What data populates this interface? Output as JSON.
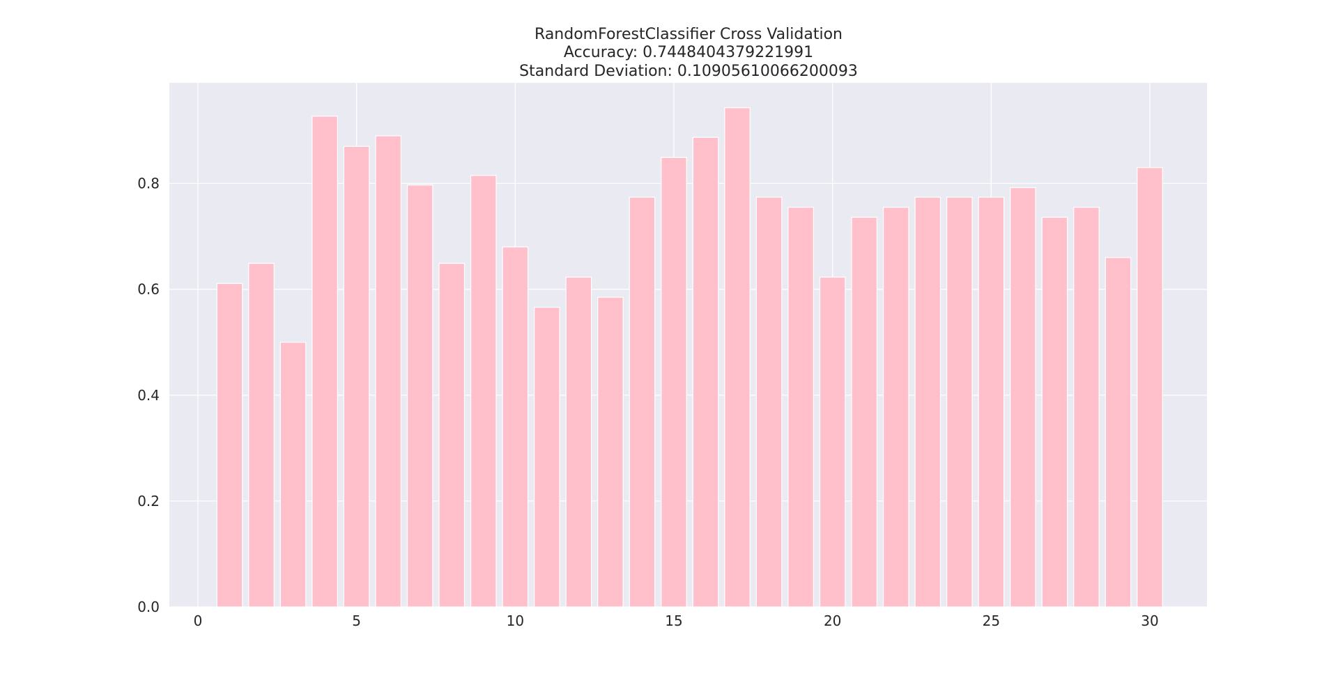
{
  "chart_data": {
    "type": "bar",
    "title": [
      "RandomForestClassifier Cross Validation",
      "Accuracy: 0.7448404379221991",
      "Standard Deviation: 0.10905610066200093"
    ],
    "xlabel": "",
    "ylabel": "",
    "x": [
      1,
      2,
      3,
      4,
      5,
      6,
      7,
      8,
      9,
      10,
      11,
      12,
      13,
      14,
      15,
      16,
      17,
      18,
      19,
      20,
      21,
      22,
      23,
      24,
      25,
      26,
      27,
      28,
      29,
      30
    ],
    "values": [
      0.611,
      0.649,
      0.5,
      0.927,
      0.87,
      0.89,
      0.797,
      0.649,
      0.815,
      0.68,
      0.566,
      0.623,
      0.585,
      0.774,
      0.849,
      0.887,
      0.943,
      0.774,
      0.755,
      0.623,
      0.736,
      0.755,
      0.774,
      0.774,
      0.774,
      0.792,
      0.736,
      0.755,
      0.66,
      0.83
    ],
    "xlim": [
      -0.9,
      31.8
    ],
    "ylim": [
      0,
      0.99
    ],
    "xticks": [
      0,
      5,
      10,
      15,
      20,
      25,
      30
    ],
    "yticks": [
      0.0,
      0.2,
      0.4,
      0.6,
      0.8
    ],
    "ytick_labels": [
      "0.0",
      "0.2",
      "0.4",
      "0.6",
      "0.8"
    ],
    "bar_width": 0.8,
    "grid": true,
    "bar_color": "#ffc0cb",
    "background_color": "#eaeaf2",
    "grid_color": "#ffffff"
  }
}
